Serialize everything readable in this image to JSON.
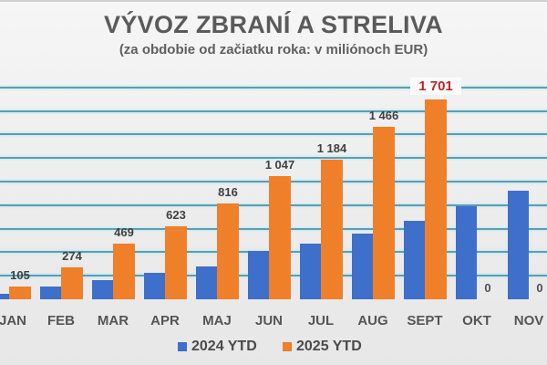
{
  "chart_data": {
    "type": "bar",
    "title": "VÝVOZ ZBRANÍ A STRELIVA",
    "subtitle": "(za obdobie od začiatku roka: v miliónoch EUR)",
    "xlabel": "",
    "ylabel": "",
    "ylim": [
      0,
      1800
    ],
    "grid": true,
    "legend_position": "bottom",
    "categories": [
      "JAN",
      "FEB",
      "MAR",
      "APR",
      "MAJ",
      "JUN",
      "JUL",
      "AUG",
      "SEPT",
      "OKT",
      "NOV"
    ],
    "series": [
      {
        "name": "2024 YTD",
        "color": "#3d6fcb",
        "values": [
          45,
          110,
          165,
          225,
          280,
          410,
          475,
          560,
          665,
          790,
          920
        ]
      },
      {
        "name": "2025 YTD",
        "color": "#f07f2a",
        "values": [
          105,
          274,
          469,
          623,
          816,
          1047,
          1184,
          1466,
          1701,
          0,
          0
        ],
        "labels": [
          "105",
          "274",
          "469",
          "623",
          "816",
          "1 047",
          "1 184",
          "1 466",
          "1 701",
          "0",
          "0"
        ]
      }
    ],
    "annotations": [
      {
        "category": "SEPT",
        "series": "2025 YTD",
        "text": "1 701",
        "color": "#c0232a",
        "emphasis": true
      }
    ]
  },
  "header": {
    "title": "VÝVOZ ZBRANÍ A STRELIVA",
    "subtitle": "(za obdobie od začiatku roka: v miliónoch EUR)"
  },
  "legend": {
    "items": [
      {
        "label": "2024 YTD",
        "color": "#3d6fcb"
      },
      {
        "label": "2025 YTD",
        "color": "#f07f2a"
      }
    ]
  }
}
